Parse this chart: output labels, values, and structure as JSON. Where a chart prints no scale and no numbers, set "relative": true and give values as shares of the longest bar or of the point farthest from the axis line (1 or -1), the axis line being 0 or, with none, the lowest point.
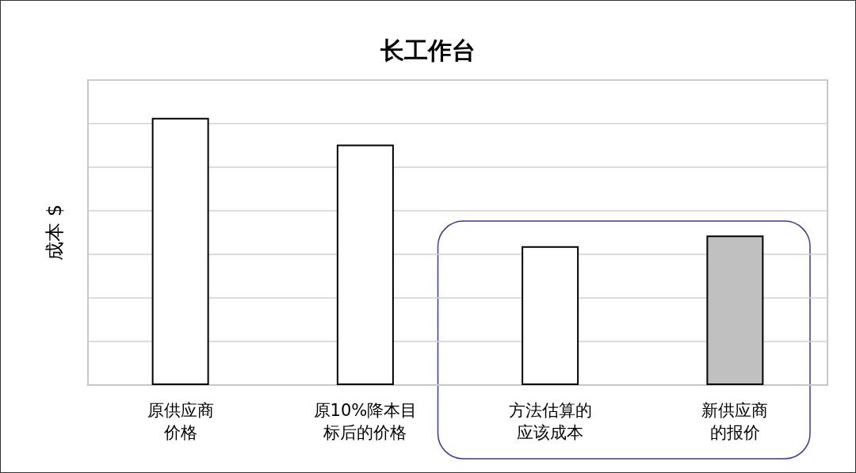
{
  "chart_data": {
    "type": "bar",
    "title": "长工作台",
    "ylabel": "成本 $",
    "categories": [
      "原供应商价格",
      "原10%降本目标后的价格",
      "方法估算的应该成本",
      "新供应商的报价"
    ],
    "values": [
      1,
      0.9,
      0.52,
      0.56
    ],
    "colors": [
      "#ffffff",
      "#ffffff",
      "#ffffff",
      "#c0c0c0"
    ],
    "relative": true,
    "grid": "y"
  }
}
